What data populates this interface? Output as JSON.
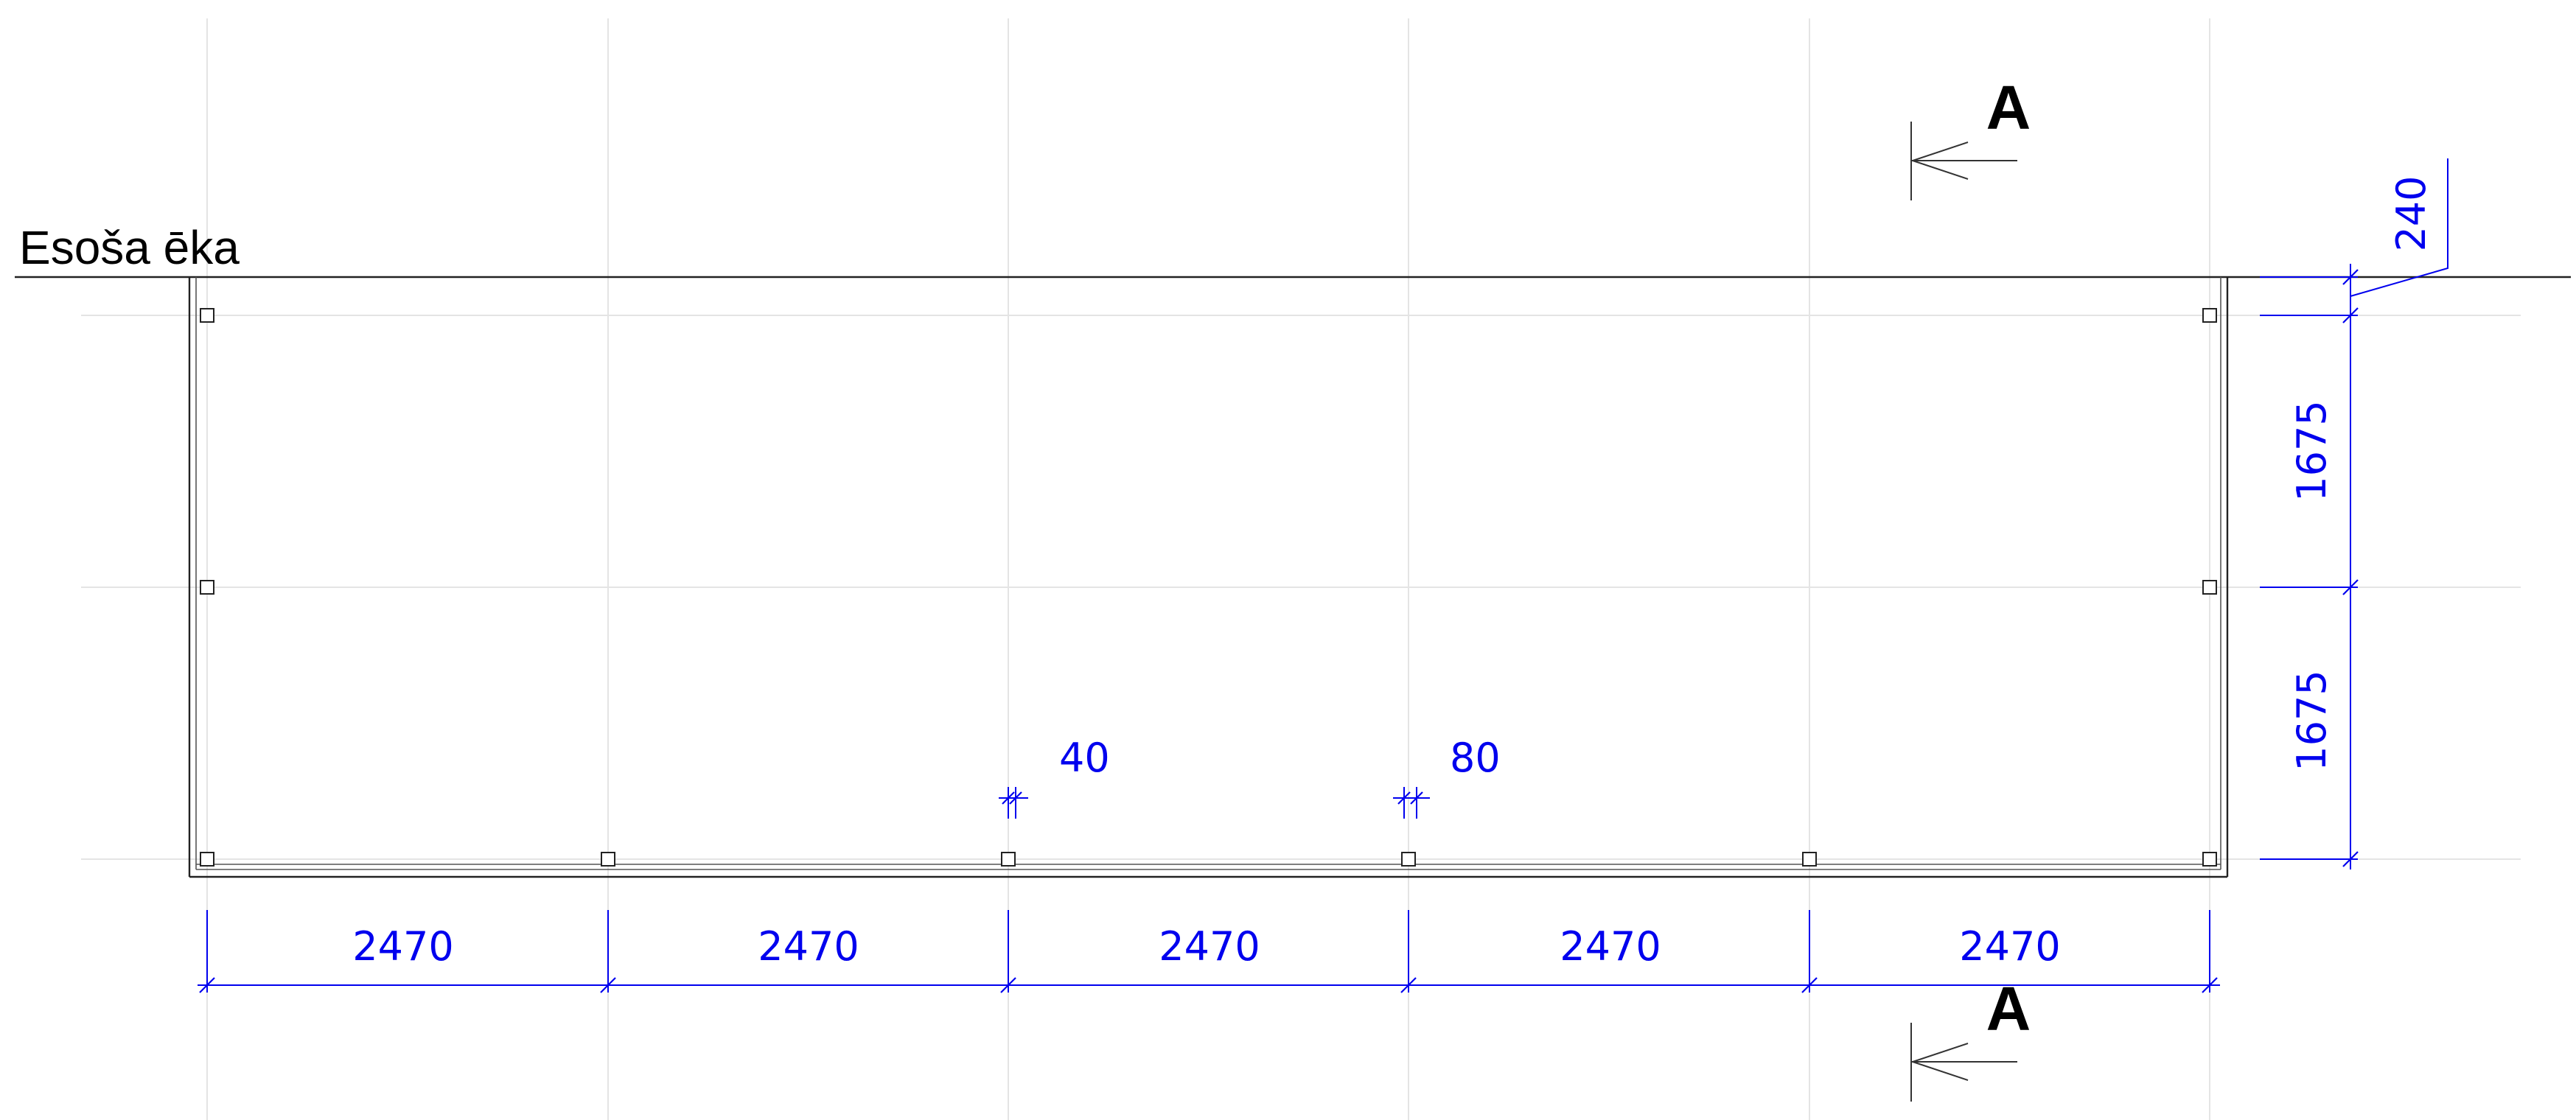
{
  "existing_building_label": "Esoša ēka",
  "section_marker": {
    "top_letter": "A",
    "bottom_letter": "A"
  },
  "dimensions": {
    "bays": [
      "2470",
      "2470",
      "2470",
      "2470",
      "2470"
    ],
    "side": [
      "240",
      "1675",
      "1675"
    ],
    "gaps": [
      "40",
      "80"
    ]
  },
  "colors": {
    "dimension": "#0000ee",
    "walls": "#222222",
    "grid": "#e4e4e4"
  }
}
